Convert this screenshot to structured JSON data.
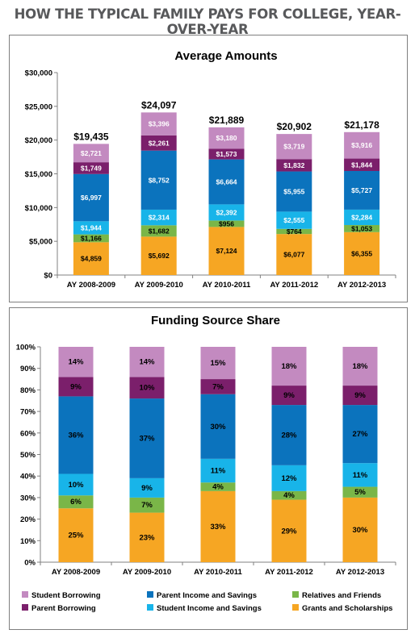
{
  "page_title": "HOW THE TYPICAL FAMILY PAYS FOR COLLEGE, YEAR-OVER-YEAR",
  "colors": {
    "Grants and Scholarships": "#f6a623",
    "Relatives and Friends": "#7ab648",
    "Student Income and Savings": "#18b4e9",
    "Parent Income and Savings": "#0b73bd",
    "Parent Borrowing": "#7b1f6b",
    "Student Borrowing": "#c38ac0",
    "axis": "#808080"
  },
  "legend": {
    "items": [
      "Student Borrowing",
      "Parent Income and Savings",
      "Relatives and Friends",
      "Parent Borrowing",
      "Student Income and Savings",
      "Grants and Scholarships"
    ]
  },
  "chart_data": [
    {
      "type": "bar",
      "stacked": true,
      "title": "Average Amounts",
      "categories": [
        "AY 2008-2009",
        "AY 2009-2010",
        "AY 2010-2011",
        "AY 2011-2012",
        "AY 2012-2013"
      ],
      "ylim": [
        0,
        30000
      ],
      "yticks": [
        "$0",
        "$5,000",
        "$10,000",
        "$15,000",
        "$20,000",
        "$25,000",
        "$30,000"
      ],
      "totals": [
        "$19,435",
        "$24,097",
        "$21,889",
        "$20,902",
        "$21,178"
      ],
      "series": [
        {
          "name": "Grants and Scholarships",
          "values": [
            4859,
            5692,
            7124,
            6077,
            6355
          ],
          "labels": [
            "$4,859",
            "$5,692",
            "$7,124",
            "$6,077",
            "$6,355"
          ]
        },
        {
          "name": "Relatives and Friends",
          "values": [
            1166,
            1682,
            956,
            764,
            1053
          ],
          "labels": [
            "$1,166",
            "$1,682",
            "$956",
            "$764",
            "$1,053"
          ]
        },
        {
          "name": "Student Income and Savings",
          "values": [
            1944,
            2314,
            2392,
            2555,
            2284
          ],
          "labels": [
            "$1,944",
            "$2,314",
            "$2,392",
            "$2,555",
            "$2,284"
          ]
        },
        {
          "name": "Parent Income and Savings",
          "values": [
            6997,
            8752,
            6664,
            5955,
            5727
          ],
          "labels": [
            "$6,997",
            "$8,752",
            "$6,664",
            "$5,955",
            "$5,727"
          ]
        },
        {
          "name": "Parent Borrowing",
          "values": [
            1749,
            2261,
            1573,
            1832,
            1844
          ],
          "labels": [
            "$1,749",
            "$2,261",
            "$1,573",
            "$1,832",
            "$1,844"
          ]
        },
        {
          "name": "Student Borrowing",
          "values": [
            2721,
            3396,
            3180,
            3719,
            3916
          ],
          "labels": [
            "$2,721",
            "$3,396",
            "$3,180",
            "$3,719",
            "$3,916"
          ]
        }
      ]
    },
    {
      "type": "bar",
      "stacked": true,
      "title": "Funding Source Share",
      "categories": [
        "AY 2008-2009",
        "AY 2009-2010",
        "AY 2010-2011",
        "AY 2011-2012",
        "AY 2012-2013"
      ],
      "ylim": [
        0,
        100
      ],
      "yticks": [
        "0%",
        "10%",
        "20%",
        "30%",
        "40%",
        "50%",
        "60%",
        "70%",
        "80%",
        "90%",
        "100%"
      ],
      "series": [
        {
          "name": "Grants and Scholarships",
          "values": [
            25,
            23,
            33,
            29,
            30
          ],
          "labels": [
            "25%",
            "23%",
            "33%",
            "29%",
            "30%"
          ]
        },
        {
          "name": "Relatives and Friends",
          "values": [
            6,
            7,
            4,
            4,
            5
          ],
          "labels": [
            "6%",
            "7%",
            "4%",
            "4%",
            "5%"
          ]
        },
        {
          "name": "Student Income and Savings",
          "values": [
            10,
            9,
            11,
            12,
            11
          ],
          "labels": [
            "10%",
            "9%",
            "11%",
            "12%",
            "11%"
          ]
        },
        {
          "name": "Parent Income and Savings",
          "values": [
            36,
            37,
            30,
            28,
            27
          ],
          "labels": [
            "36%",
            "37%",
            "30%",
            "28%",
            "27%"
          ]
        },
        {
          "name": "Parent Borrowing",
          "values": [
            9,
            10,
            7,
            9,
            9
          ],
          "labels": [
            "9%",
            "10%",
            "7%",
            "9%",
            "9%"
          ]
        },
        {
          "name": "Student Borrowing",
          "values": [
            14,
            14,
            15,
            18,
            18
          ],
          "labels": [
            "14%",
            "14%",
            "15%",
            "18%",
            "18%"
          ]
        }
      ]
    }
  ]
}
